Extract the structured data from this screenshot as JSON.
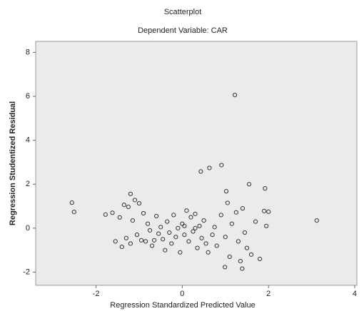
{
  "chart_data": {
    "type": "scatter",
    "title": "Scatterplot",
    "subtitle": "Dependent Variable: CAR",
    "x_label": "Regression Standardized Predicted Value",
    "y_label": "Regression Studentized Residual",
    "xlim": [
      -3.4,
      4.05
    ],
    "ylim": [
      -2.6,
      8.5
    ],
    "xticks": [
      -2,
      0,
      2,
      4
    ],
    "yticks": [
      -2,
      0,
      2,
      4,
      6,
      8
    ],
    "color": "#333333",
    "x": [
      -2.56,
      -2.51,
      -1.78,
      -1.62,
      -1.45,
      -1.2,
      -1.1,
      -1.35,
      -1.25,
      -1.0,
      -1.15,
      -0.9,
      -1.3,
      -1.2,
      -1.05,
      -0.95,
      -0.8,
      -0.75,
      -0.7,
      -0.6,
      -0.55,
      -0.5,
      -0.45,
      -0.4,
      -0.35,
      -0.3,
      -0.25,
      -0.2,
      -0.15,
      -0.1,
      -0.05,
      0.0,
      0.05,
      0.1,
      0.15,
      0.2,
      0.25,
      0.3,
      0.35,
      0.4,
      0.45,
      0.5,
      0.55,
      0.6,
      0.7,
      0.75,
      0.8,
      0.9,
      1.0,
      1.05,
      1.1,
      1.15,
      1.25,
      1.3,
      1.35,
      1.4,
      1.45,
      1.5,
      1.6,
      1.7,
      1.8,
      1.9,
      1.95,
      2.0,
      -0.85,
      -0.65,
      0.3,
      0.05,
      -1.55,
      -1.4,
      0.43,
      0.63,
      0.91,
      1.02,
      1.55,
      1.92,
      3.12,
      0.99,
      1.39,
      1.22
    ],
    "values": [
      1.16,
      0.74,
      0.62,
      0.7,
      0.49,
      1.56,
      1.28,
      1.06,
      0.97,
      1.13,
      0.35,
      0.68,
      -0.45,
      -0.7,
      -0.3,
      -0.55,
      0.2,
      -0.1,
      -0.8,
      0.55,
      -0.25,
      0.05,
      -0.5,
      -1.0,
      0.3,
      -0.2,
      -0.7,
      0.6,
      -0.4,
      0.0,
      -1.1,
      0.2,
      -0.3,
      0.8,
      -0.6,
      0.5,
      -0.15,
      0.65,
      -0.9,
      0.1,
      -0.45,
      0.35,
      -0.7,
      -1.1,
      -0.3,
      0.05,
      -0.8,
      0.6,
      -0.4,
      1.15,
      -1.3,
      0.2,
      0.72,
      -0.6,
      -1.5,
      0.9,
      -0.2,
      -0.9,
      -1.2,
      0.3,
      -1.4,
      0.78,
      0.1,
      0.75,
      -0.6,
      -0.55,
      0.0,
      0.1,
      -0.6,
      -0.85,
      2.58,
      2.74,
      2.87,
      1.68,
      2.0,
      1.81,
      0.35,
      -1.77,
      -1.84,
      6.06
    ]
  }
}
